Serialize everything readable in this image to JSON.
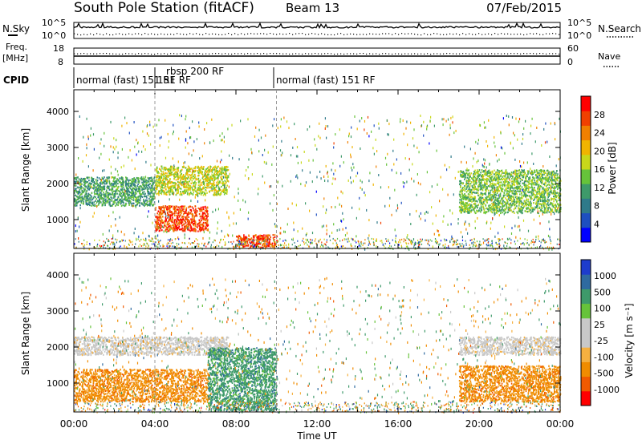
{
  "header": {
    "station": "South Pole Station (fitACF)",
    "beam": "Beam 13",
    "date": "07/Feb/2015"
  },
  "top_panels": {
    "nsky_label": "N.Sky",
    "nsearch_label": "N.Search",
    "noise_ticks": [
      "10^5",
      "10^0"
    ],
    "freq_label_1": "Freq.",
    "freq_label_2": "[MHz]",
    "freq_ticks": [
      "18",
      "8"
    ],
    "nave_ticks": [
      "60",
      "0"
    ],
    "nave_label": "Nave",
    "cpid_label": "CPID",
    "cpid_segments": [
      {
        "label": "normal (fast) 151 RF",
        "start_hr": 0,
        "end_hr": 4.0
      },
      {
        "label": "rbsp 200 RF",
        "start_hr": 4.0,
        "end_hr": 10.0
      },
      {
        "label": "151 RF",
        "start_hr": 4.0,
        "end_hr": 10.0
      },
      {
        "label": "normal (fast) 151 RF",
        "start_hr": 10.0,
        "end_hr": 24.0
      }
    ]
  },
  "chart_data": [
    {
      "type": "heatmap",
      "name": "power",
      "ylabel": "Slant Range [km]",
      "xlabel": "Time UT",
      "xlim": [
        0,
        24
      ],
      "ylim": [
        200,
        4600
      ],
      "x_ticks": [
        "00:00",
        "04:00",
        "08:00",
        "12:00",
        "16:00",
        "20:00",
        "00:00"
      ],
      "y_ticks": [
        1000,
        2000,
        3000,
        4000
      ],
      "colorbar": {
        "label": "Power [dB]",
        "ticks": [
          "28",
          "24",
          "20",
          "16",
          "12",
          "8",
          "4"
        ],
        "colors": [
          "#0000ff",
          "#1e4fc0",
          "#2f7a8a",
          "#3e9a6a",
          "#66c33a",
          "#c8d81a",
          "#f0b400",
          "#f08000",
          "#f04000",
          "#ff0000"
        ]
      },
      "features": [
        {
          "desc": "band",
          "t": [
            0,
            4.0
          ],
          "range": [
            1400,
            2200
          ],
          "power_db": 10
        },
        {
          "desc": "band",
          "t": [
            4.0,
            7.6
          ],
          "range": [
            1700,
            2500
          ],
          "power_db": 16
        },
        {
          "desc": "high power patch",
          "t": [
            4.0,
            6.6
          ],
          "range": [
            700,
            1400
          ],
          "power_db": 26
        },
        {
          "desc": "high power ground scatter",
          "t": [
            8.0,
            10.0
          ],
          "range": [
            250,
            600
          ],
          "power_db": 28
        },
        {
          "desc": "band",
          "t": [
            19.0,
            24.0
          ],
          "range": [
            1200,
            2400
          ],
          "power_db": 12
        }
      ]
    },
    {
      "type": "heatmap",
      "name": "velocity",
      "ylabel": "Slant Range [km]",
      "xlabel": "Time UT",
      "xlim": [
        0,
        24
      ],
      "ylim": [
        200,
        4600
      ],
      "x_ticks": [
        "00:00",
        "04:00",
        "08:00",
        "12:00",
        "16:00",
        "20:00",
        "00:00"
      ],
      "y_ticks": [
        1000,
        2000,
        3000,
        4000
      ],
      "colorbar": {
        "label": "Velocity [m s⁻¹]",
        "ticks": [
          "1000",
          "500",
          "100",
          "25",
          "-25",
          "-100",
          "-500",
          "-1000"
        ],
        "colors": [
          "#ff0000",
          "#f05a00",
          "#f08c00",
          "#f5b040",
          "#c8c8c8",
          "#c8c8c8",
          "#66c33a",
          "#3e9a6a",
          "#2f6aa0",
          "#1e3ccc"
        ]
      },
      "features": [
        {
          "desc": "ground scatter band",
          "t": [
            0,
            7.6
          ],
          "range": [
            1800,
            2300
          ],
          "velocity": 0
        },
        {
          "desc": "negative velocity band",
          "t": [
            0,
            6.6
          ],
          "range": [
            500,
            1400
          ],
          "velocity": -150
        },
        {
          "desc": "mixed scatter",
          "t": [
            6.6,
            10.0
          ],
          "range": [
            250,
            2000
          ],
          "velocity": 200
        },
        {
          "desc": "negative velocity band",
          "t": [
            19.0,
            24.0
          ],
          "range": [
            500,
            1500
          ],
          "velocity": -200
        },
        {
          "desc": "ground scatter band",
          "t": [
            19.0,
            24.0
          ],
          "range": [
            1800,
            2300
          ],
          "velocity": 0
        }
      ]
    }
  ]
}
